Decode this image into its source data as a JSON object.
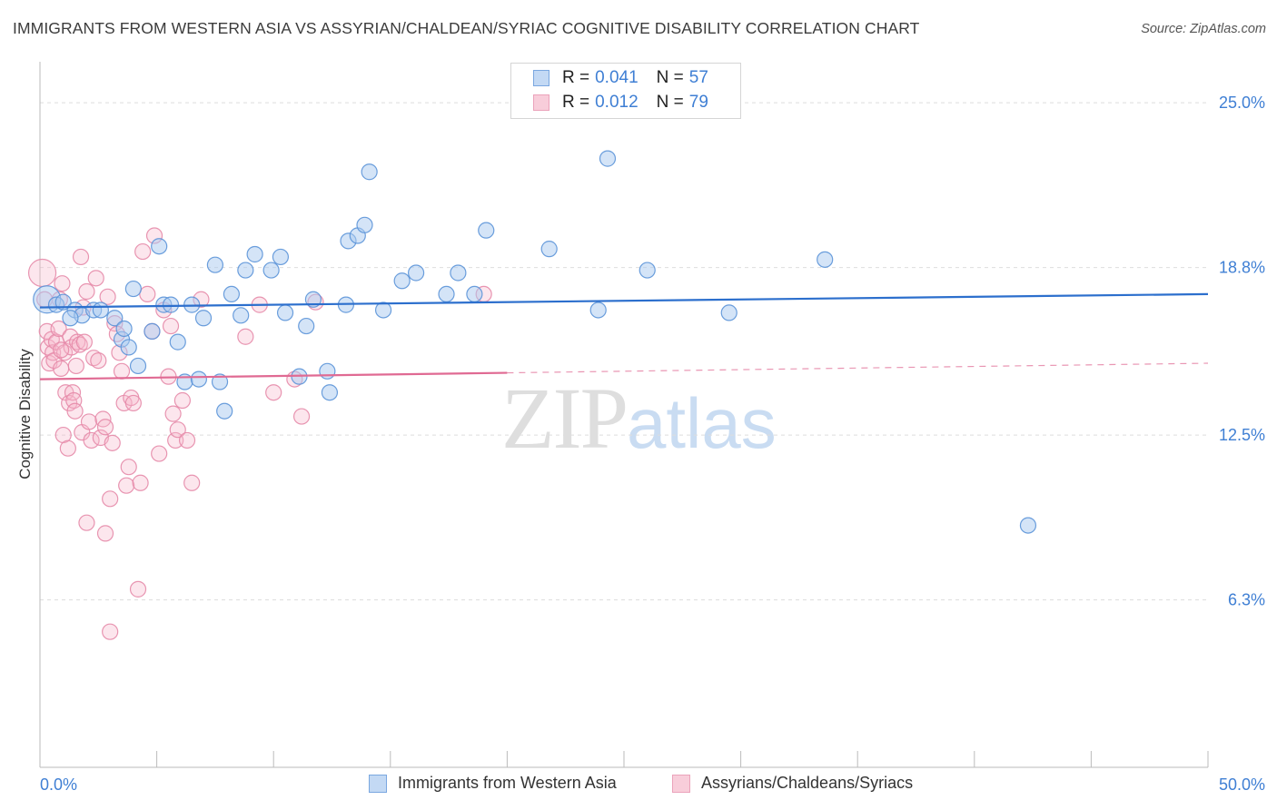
{
  "header": {
    "title": "IMMIGRANTS FROM WESTERN ASIA VS ASSYRIAN/CHALDEAN/SYRIAC COGNITIVE DISABILITY CORRELATION CHART",
    "source": "Source: ZipAtlas.com"
  },
  "watermark": {
    "zip": "ZIP",
    "atlas": "atlas"
  },
  "legend": {
    "series1": {
      "r_label": "R =",
      "r_value": "0.041",
      "n_label": "N =",
      "n_value": "57"
    },
    "series2": {
      "r_label": "R =",
      "r_value": "0.012",
      "n_label": "N =",
      "n_value": "79"
    }
  },
  "colors": {
    "blue_fill": "#a9c9f0",
    "blue_stroke": "#5b93d8",
    "blue_line": "#2c6fcd",
    "pink_fill": "#f5b8cb",
    "pink_stroke": "#e58aa8",
    "pink_line": "#e06a93",
    "tick_label": "#3f7fd4",
    "grid": "#dddddd"
  },
  "chart_data": {
    "type": "scatter",
    "title": "IMMIGRANTS FROM WESTERN ASIA VS ASSYRIAN/CHALDEAN/SYRIAC COGNITIVE DISABILITY CORRELATION CHART",
    "xlabel": "",
    "ylabel": "Cognitive Disability",
    "xlim": [
      0,
      50
    ],
    "ylim": [
      0,
      26.2
    ],
    "x_tick_labels": [
      "0.0%",
      "50.0%"
    ],
    "y_ticks": [
      6.3,
      12.5,
      18.8,
      25.0
    ],
    "y_tick_labels": [
      "6.3%",
      "12.5%",
      "18.8%",
      "25.0%"
    ],
    "grid": "horizontal dashed",
    "legend_position": "top-center",
    "series": [
      {
        "name": "Immigrants from Western Asia",
        "color": "#a9c9f0",
        "trend": {
          "x": [
            0,
            50
          ],
          "y": [
            17.3,
            17.8
          ],
          "style": "solid"
        },
        "points": [
          [
            0.3,
            17.6
          ],
          [
            0.7,
            17.4
          ],
          [
            1.0,
            17.5
          ],
          [
            1.5,
            17.2
          ],
          [
            1.8,
            17.0
          ],
          [
            2.3,
            17.2
          ],
          [
            3.2,
            16.9
          ],
          [
            3.5,
            16.1
          ],
          [
            3.8,
            15.8
          ],
          [
            3.6,
            16.5
          ],
          [
            4.2,
            15.1
          ],
          [
            4.0,
            18.0
          ],
          [
            4.8,
            16.4
          ],
          [
            5.1,
            19.6
          ],
          [
            5.3,
            17.4
          ],
          [
            5.6,
            17.4
          ],
          [
            5.9,
            16.0
          ],
          [
            6.2,
            14.5
          ],
          [
            6.5,
            17.4
          ],
          [
            6.8,
            14.6
          ],
          [
            7.0,
            16.9
          ],
          [
            7.5,
            18.9
          ],
          [
            7.7,
            14.5
          ],
          [
            7.9,
            13.4
          ],
          [
            8.2,
            17.8
          ],
          [
            8.6,
            17.0
          ],
          [
            8.8,
            18.7
          ],
          [
            9.2,
            19.3
          ],
          [
            9.9,
            18.7
          ],
          [
            10.3,
            19.2
          ],
          [
            10.5,
            17.1
          ],
          [
            11.1,
            14.7
          ],
          [
            11.4,
            16.6
          ],
          [
            11.7,
            17.6
          ],
          [
            12.3,
            14.9
          ],
          [
            12.4,
            14.1
          ],
          [
            13.1,
            17.4
          ],
          [
            13.2,
            19.8
          ],
          [
            13.6,
            20.0
          ],
          [
            13.9,
            20.4
          ],
          [
            14.1,
            22.4
          ],
          [
            14.7,
            17.2
          ],
          [
            15.5,
            18.3
          ],
          [
            16.1,
            18.6
          ],
          [
            17.4,
            17.8
          ],
          [
            17.9,
            18.6
          ],
          [
            18.6,
            17.8
          ],
          [
            19.1,
            20.2
          ],
          [
            21.8,
            19.5
          ],
          [
            23.9,
            17.2
          ],
          [
            24.3,
            22.9
          ],
          [
            26.0,
            18.7
          ],
          [
            29.5,
            17.1
          ],
          [
            33.6,
            19.1
          ],
          [
            42.3,
            9.1
          ],
          [
            1.3,
            16.9
          ],
          [
            2.6,
            17.2
          ]
        ]
      },
      {
        "name": "Assyrians/Chaldeans/Syriacs",
        "color": "#f5b8cb",
        "trend": {
          "x": [
            0,
            50
          ],
          "y": [
            14.6,
            15.2
          ],
          "solid_until_x": 20,
          "style": "solid-then-dashed"
        },
        "points": [
          [
            0.1,
            18.6
          ],
          [
            0.2,
            17.6
          ],
          [
            0.3,
            16.4
          ],
          [
            0.35,
            15.8
          ],
          [
            0.4,
            15.2
          ],
          [
            0.5,
            16.1
          ],
          [
            0.55,
            15.6
          ],
          [
            0.6,
            15.3
          ],
          [
            0.7,
            16.0
          ],
          [
            0.8,
            16.5
          ],
          [
            0.85,
            17.6
          ],
          [
            0.9,
            15.0
          ],
          [
            0.95,
            18.2
          ],
          [
            1.0,
            12.5
          ],
          [
            1.05,
            15.6
          ],
          [
            1.1,
            14.1
          ],
          [
            1.2,
            12.0
          ],
          [
            1.25,
            13.7
          ],
          [
            1.3,
            16.2
          ],
          [
            1.35,
            15.8
          ],
          [
            1.4,
            14.1
          ],
          [
            1.45,
            13.8
          ],
          [
            1.5,
            13.4
          ],
          [
            1.55,
            15.1
          ],
          [
            1.6,
            16.0
          ],
          [
            1.7,
            15.9
          ],
          [
            1.75,
            19.2
          ],
          [
            1.8,
            12.6
          ],
          [
            1.85,
            17.3
          ],
          [
            1.9,
            16.0
          ],
          [
            2.0,
            17.9
          ],
          [
            2.1,
            13.0
          ],
          [
            2.2,
            12.3
          ],
          [
            2.3,
            15.4
          ],
          [
            2.4,
            18.4
          ],
          [
            2.5,
            15.3
          ],
          [
            2.6,
            12.4
          ],
          [
            2.7,
            13.1
          ],
          [
            2.8,
            12.8
          ],
          [
            2.9,
            17.7
          ],
          [
            3.0,
            10.1
          ],
          [
            3.1,
            12.2
          ],
          [
            3.2,
            16.7
          ],
          [
            3.3,
            16.3
          ],
          [
            3.4,
            15.6
          ],
          [
            3.5,
            14.9
          ],
          [
            3.6,
            13.7
          ],
          [
            3.7,
            10.6
          ],
          [
            3.8,
            11.3
          ],
          [
            3.9,
            13.9
          ],
          [
            4.0,
            13.7
          ],
          [
            4.2,
            6.7
          ],
          [
            4.4,
            19.4
          ],
          [
            4.6,
            17.8
          ],
          [
            4.8,
            16.4
          ],
          [
            4.9,
            20.0
          ],
          [
            5.1,
            11.8
          ],
          [
            5.3,
            17.2
          ],
          [
            5.5,
            14.7
          ],
          [
            5.6,
            16.6
          ],
          [
            5.7,
            13.3
          ],
          [
            5.8,
            12.3
          ],
          [
            5.9,
            12.7
          ],
          [
            6.1,
            13.8
          ],
          [
            6.3,
            12.3
          ],
          [
            6.5,
            10.7
          ],
          [
            6.9,
            17.6
          ],
          [
            8.8,
            16.2
          ],
          [
            9.4,
            17.4
          ],
          [
            10.0,
            14.1
          ],
          [
            10.9,
            14.6
          ],
          [
            11.2,
            13.2
          ],
          [
            11.8,
            17.5
          ],
          [
            2.0,
            9.2
          ],
          [
            2.8,
            8.8
          ],
          [
            3.0,
            5.1
          ],
          [
            0.9,
            15.7
          ],
          [
            19.0,
            17.8
          ],
          [
            4.3,
            10.7
          ]
        ]
      }
    ]
  },
  "bottom_legend": {
    "item1": "Immigrants from Western Asia",
    "item2": "Assyrians/Chaldeans/Syriacs"
  }
}
